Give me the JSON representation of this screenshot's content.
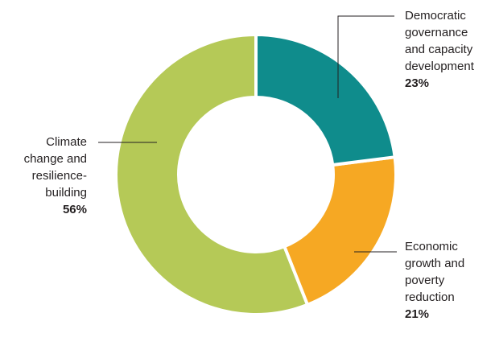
{
  "chart_data": {
    "type": "donut",
    "categories": [
      "Democratic governance and capacity development",
      "Economic growth and poverty reduction",
      "Climate change and resilience-building"
    ],
    "values": [
      23,
      21,
      56
    ],
    "value_labels": [
      "23%",
      "21%",
      "56%"
    ],
    "colors": [
      "#0f8c8c",
      "#f6a823",
      "#b5c957"
    ]
  }
}
